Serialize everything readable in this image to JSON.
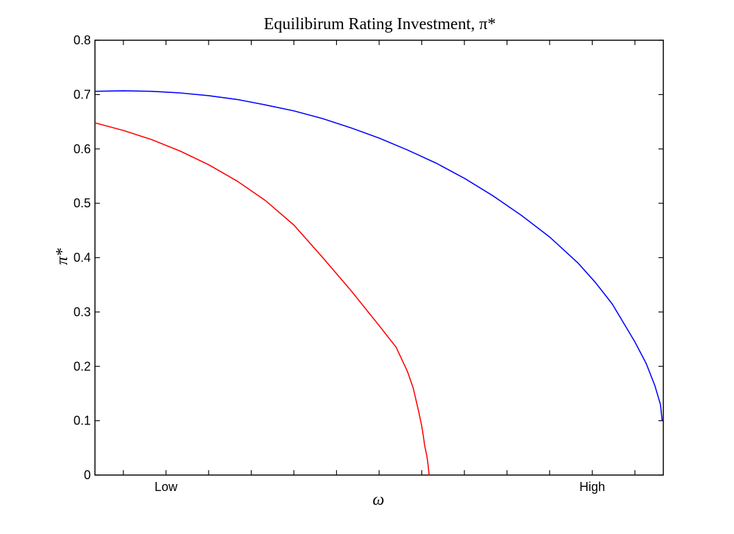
{
  "chart_data": {
    "type": "line",
    "title": "Equilibirum Rating Investment, π*",
    "xlabel": "ω",
    "ylabel": "π*",
    "xlim": [
      0,
      1
    ],
    "ylim": [
      0,
      0.8
    ],
    "yticks": [
      "0",
      "0.1",
      "0.2",
      "0.3",
      "0.4",
      "0.5",
      "0.6",
      "0.7",
      "0.8"
    ],
    "yticks_values": [
      0,
      0.1,
      0.2,
      0.3,
      0.4,
      0.5,
      0.6,
      0.7,
      0.8
    ],
    "xticks": [
      {
        "value": 0.125,
        "label": "Low"
      },
      {
        "value": 0.875,
        "label": "High"
      }
    ],
    "xminor_ticks": [
      0.05,
      0.2,
      0.275,
      0.35,
      0.425,
      0.5,
      0.575,
      0.65,
      0.725,
      0.8,
      0.95
    ],
    "grid": false,
    "series": [
      {
        "color": "#0000ff",
        "x": [
          0,
          0.05,
          0.1,
          0.15,
          0.2,
          0.25,
          0.3,
          0.35,
          0.4,
          0.45,
          0.5,
          0.55,
          0.6,
          0.65,
          0.7,
          0.75,
          0.8,
          0.85,
          0.88,
          0.91,
          0.93,
          0.95,
          0.97,
          0.985,
          0.995,
          0.998
        ],
        "y": [
          0.706,
          0.707,
          0.706,
          0.703,
          0.698,
          0.691,
          0.681,
          0.67,
          0.656,
          0.639,
          0.62,
          0.598,
          0.574,
          0.546,
          0.514,
          0.478,
          0.438,
          0.39,
          0.355,
          0.315,
          0.28,
          0.245,
          0.205,
          0.165,
          0.13,
          0.1
        ]
      },
      {
        "color": "#ff0000",
        "x": [
          0,
          0.05,
          0.1,
          0.15,
          0.2,
          0.25,
          0.3,
          0.35,
          0.4,
          0.45,
          0.5,
          0.53,
          0.55,
          0.56,
          0.57,
          0.575,
          0.578,
          0.58,
          0.582,
          0.584,
          0.586,
          0.587,
          0.588
        ],
        "y": [
          0.648,
          0.634,
          0.617,
          0.596,
          0.571,
          0.541,
          0.505,
          0.46,
          0.401,
          0.34,
          0.275,
          0.235,
          0.19,
          0.16,
          0.115,
          0.09,
          0.07,
          0.055,
          0.045,
          0.035,
          0.02,
          0.01,
          0.0
        ]
      }
    ]
  }
}
